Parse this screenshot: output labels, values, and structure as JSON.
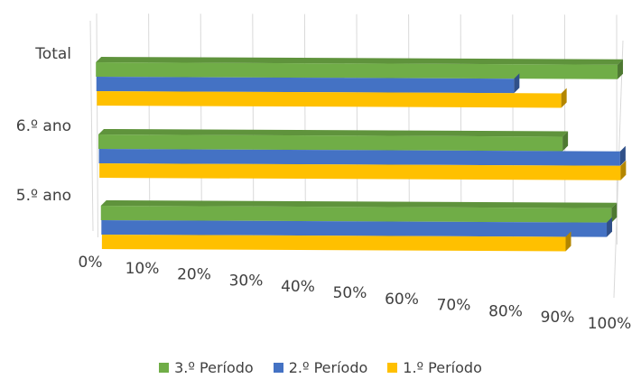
{
  "chart_data": {
    "type": "bar",
    "orientation": "horizontal",
    "style": "3d",
    "categories": [
      "5.º ano",
      "6.º ano",
      "Total"
    ],
    "series": [
      {
        "name": "1.º Período",
        "color": "#FFC000",
        "values": [
          89,
          100,
          89
        ]
      },
      {
        "name": "2.º Período",
        "color": "#4472C4",
        "values": [
          97,
          100,
          80
        ]
      },
      {
        "name": "3.º Período",
        "color": "#70AD47",
        "values": [
          98,
          89,
          100
        ]
      }
    ],
    "x_ticks": [
      "0%",
      "10%",
      "20%",
      "30%",
      "40%",
      "50%",
      "60%",
      "70%",
      "80%",
      "90%",
      "100%"
    ],
    "xlim": [
      0,
      100
    ],
    "grid": true,
    "legend_position": "bottom"
  }
}
